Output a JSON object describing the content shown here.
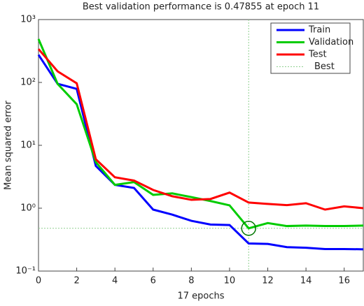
{
  "chart_data": {
    "type": "line",
    "title": "Best validation performance is 0.47855 at epoch 11",
    "xlabel": "17 epochs",
    "ylabel": "Mean squared error",
    "x": [
      0,
      1,
      2,
      3,
      4,
      5,
      6,
      7,
      8,
      9,
      10,
      11,
      12,
      13,
      14,
      15,
      16,
      17
    ],
    "series": [
      {
        "name": "Train",
        "color": "#0000ff",
        "values": [
          275,
          95,
          79,
          4.7,
          2.35,
          2.1,
          0.95,
          0.79,
          0.63,
          0.55,
          0.54,
          0.275,
          0.27,
          0.24,
          0.235,
          0.224,
          0.224,
          0.222
        ]
      },
      {
        "name": "Validation",
        "color": "#00cc00",
        "values": [
          490,
          95,
          45,
          5.4,
          2.35,
          2.6,
          1.63,
          1.72,
          1.5,
          1.3,
          1.11,
          0.47855,
          0.58,
          0.52,
          0.53,
          0.52,
          0.52,
          0.53
        ]
      },
      {
        "name": "Test",
        "color": "#ff0000",
        "values": [
          340,
          150,
          97,
          6,
          3.1,
          2.75,
          1.95,
          1.55,
          1.36,
          1.4,
          1.77,
          1.23,
          1.17,
          1.12,
          1.2,
          0.95,
          1.07,
          1.0
        ]
      }
    ],
    "best_label": "Best",
    "best_epoch": 11,
    "best_value": 0.47855,
    "best_color": "#8fcf8f",
    "xlim": [
      0,
      17
    ],
    "xticks": [
      0,
      2,
      4,
      6,
      8,
      10,
      12,
      14,
      16
    ],
    "ylim": [
      0.1,
      1000
    ],
    "log_y": true,
    "yticks": [
      {
        "value": 0.1,
        "label": "10⁻¹"
      },
      {
        "value": 1,
        "label": "10⁰"
      },
      {
        "value": 10,
        "label": "10¹"
      },
      {
        "value": 100,
        "label": "10²"
      },
      {
        "value": 1000,
        "label": "10³"
      }
    ],
    "legend": "upper right"
  }
}
